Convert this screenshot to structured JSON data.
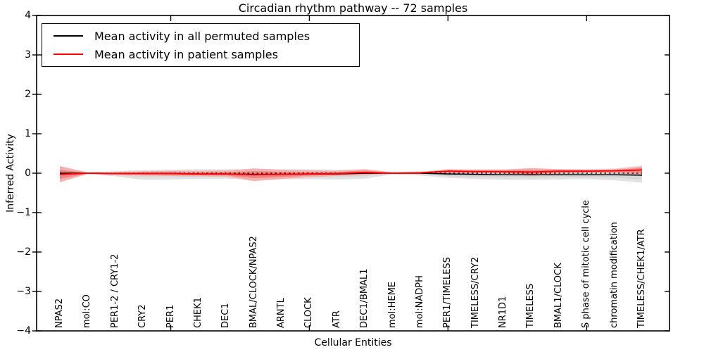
{
  "chart_data": {
    "type": "line",
    "title": "Circadian rhythm pathway -- 72 samples",
    "xlabel": "Cellular Entities",
    "ylabel": "Inferred Activity",
    "ylim": [
      -4,
      4
    ],
    "yticks": [
      4,
      3,
      2,
      1,
      0,
      -1,
      -2,
      -3,
      -4
    ],
    "x_major_tick_indices": [
      4,
      9,
      14,
      19
    ],
    "grid": false,
    "legend_position": "upper left",
    "categories": [
      "NPAS2",
      "mol:CO",
      "PER1-2 / CRY1-2",
      "CRY2",
      "PER1",
      "CHEK1",
      "DEC1",
      "BMAL/CLOCK/NPAS2",
      "ARNTL",
      "CLOCK",
      "ATR",
      "DEC1/BMAL1",
      "mol:HEME",
      "mol:NADPH",
      "PER1/TIMELESS",
      "TIMELESS/CRY2",
      "NR1D1",
      "TIMELESS",
      "BMAL1/CLOCK",
      "S phase of mitotic cell cycle",
      "chromatin modification",
      "TIMELESS/CHEK1/ATR"
    ],
    "series": [
      {
        "name": "Mean activity in all permuted samples",
        "color": "#000000",
        "values": [
          0,
          0,
          -0.01,
          -0.01,
          -0.01,
          -0.02,
          -0.02,
          -0.03,
          -0.03,
          -0.02,
          -0.02,
          0,
          0,
          0,
          -0.02,
          -0.03,
          -0.04,
          -0.04,
          -0.04,
          -0.04,
          -0.04,
          -0.05
        ]
      },
      {
        "name": "Mean activity in patient samples",
        "color": "#ff0000",
        "values": [
          -0.03,
          0,
          -0.01,
          -0.01,
          -0.01,
          -0.02,
          -0.02,
          -0.04,
          -0.03,
          -0.02,
          -0.01,
          0.02,
          0,
          0.01,
          0.05,
          0.04,
          0.04,
          0.03,
          0.05,
          0.05,
          0.06,
          0.08
        ]
      }
    ],
    "bands": [
      {
        "name": "permuted-samples-range",
        "outer_color": "#e2e2e2",
        "inner_color": "#d6d6d6",
        "low": [
          -0.05,
          -0.02,
          -0.08,
          -0.17,
          -0.16,
          -0.14,
          -0.14,
          -0.14,
          -0.15,
          -0.15,
          -0.16,
          -0.14,
          -0.03,
          -0.06,
          -0.12,
          -0.15,
          -0.17,
          -0.17,
          -0.16,
          -0.15,
          -0.18,
          -0.24
        ],
        "high": [
          0.04,
          0.02,
          0.05,
          0.08,
          0.09,
          0.1,
          0.1,
          0.1,
          0.1,
          0.1,
          0.09,
          0.1,
          0.03,
          0.05,
          0.08,
          0.1,
          0.1,
          0.11,
          0.11,
          0.11,
          0.12,
          0.2
        ]
      },
      {
        "name": "patient-samples-range",
        "outer_color": "#f5b0b0",
        "inner_color": "#ee8484",
        "low": [
          -0.23,
          -0.02,
          -0.04,
          -0.06,
          -0.07,
          -0.08,
          -0.09,
          -0.2,
          -0.15,
          -0.1,
          -0.07,
          -0.05,
          -0.02,
          -0.02,
          0.0,
          -0.01,
          -0.01,
          -0.08,
          -0.01,
          0.01,
          0.0,
          -0.04
        ],
        "high": [
          0.18,
          0.02,
          0.03,
          0.05,
          0.06,
          0.06,
          0.07,
          0.12,
          0.09,
          0.07,
          0.06,
          0.1,
          0.02,
          0.03,
          0.1,
          0.09,
          0.09,
          0.13,
          0.1,
          0.09,
          0.1,
          0.17
        ]
      }
    ],
    "zero_line": {
      "style": "dashed",
      "color": "#000000",
      "y": 0
    }
  }
}
